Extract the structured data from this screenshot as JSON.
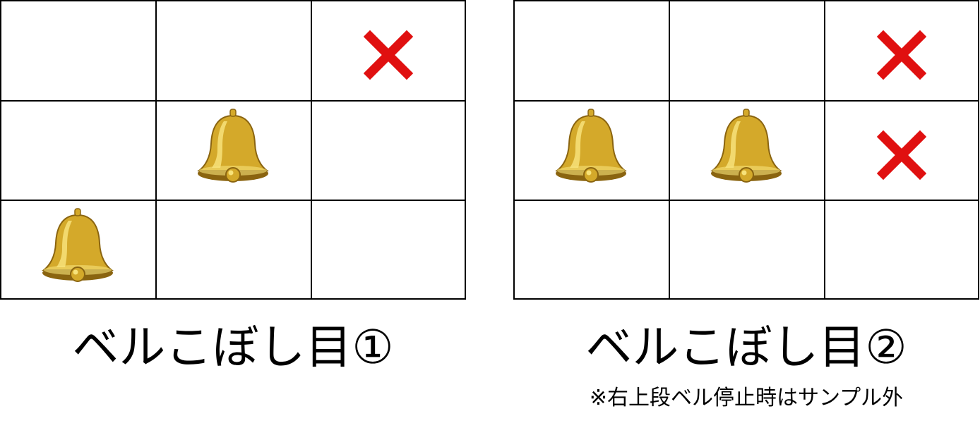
{
  "panels": [
    {
      "title": "ベルこぼし目①",
      "note": "",
      "cells": [
        [
          "empty",
          "empty",
          "cross"
        ],
        [
          "empty",
          "bell",
          "empty"
        ],
        [
          "bell",
          "empty",
          "empty"
        ]
      ]
    },
    {
      "title": "ベルこぼし目②",
      "note": "※右上段ベル停止時はサンプル外",
      "cells": [
        [
          "empty",
          "empty",
          "cross"
        ],
        [
          "bell",
          "bell",
          "cross"
        ],
        [
          "empty",
          "empty",
          "empty"
        ]
      ]
    }
  ],
  "colors": {
    "grid": "#000000",
    "cross": "#e01010",
    "bell_light": "#f7e27a",
    "bell_mid": "#d4a92a",
    "bell_dark": "#8a6410"
  },
  "icons": {
    "bell": "bell-icon",
    "cross": "cross-icon"
  }
}
